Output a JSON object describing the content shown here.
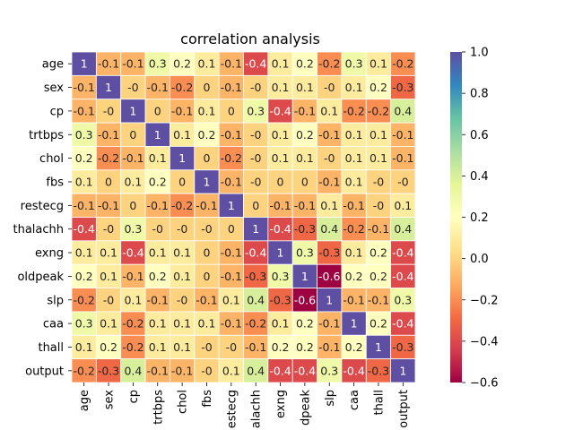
{
  "chart_data": {
    "type": "heatmap",
    "title": "correlation analysis",
    "xlabel": "",
    "ylabel": "",
    "labels": [
      "age",
      "sex",
      "cp",
      "trtbps",
      "chol",
      "fbs",
      "restecg",
      "thalachh",
      "exng",
      "oldpeak",
      "slp",
      "caa",
      "thall",
      "output"
    ],
    "x_tick_labels_visible": [
      "age",
      "sex",
      "cp",
      "trtbps",
      "chol",
      "fbs",
      "estecg",
      "alachh",
      "exng",
      "dpeak",
      "slp",
      "caa",
      "thall",
      "output"
    ],
    "matrix": [
      [
        1,
        -0.1,
        -0.1,
        0.3,
        0.2,
        0.1,
        -0.1,
        -0.4,
        0.1,
        0.2,
        -0.2,
        0.3,
        0.1,
        -0.2
      ],
      [
        -0.1,
        1,
        0,
        -0.1,
        -0.2,
        0,
        -0.1,
        0,
        0.1,
        0.1,
        0,
        0.1,
        0.2,
        -0.3
      ],
      [
        -0.1,
        0,
        1,
        0,
        -0.1,
        0.1,
        0,
        0.3,
        -0.4,
        -0.1,
        0.1,
        -0.2,
        -0.2,
        0.4
      ],
      [
        0.3,
        -0.1,
        0,
        1,
        0.1,
        0.2,
        -0.1,
        0,
        0.1,
        0.2,
        -0.1,
        0.1,
        0.1,
        -0.1
      ],
      [
        0.2,
        -0.2,
        -0.1,
        0.1,
        1,
        0,
        -0.2,
        0,
        0.1,
        0.1,
        0,
        0.1,
        0.1,
        -0.1
      ],
      [
        0.1,
        0,
        0.1,
        0.2,
        0,
        1,
        -0.1,
        0,
        0,
        0,
        -0.1,
        0.1,
        0,
        0
      ],
      [
        -0.1,
        -0.1,
        0,
        -0.1,
        -0.2,
        -0.1,
        1,
        0,
        -0.1,
        -0.1,
        0.1,
        -0.1,
        0,
        0.1
      ],
      [
        -0.4,
        0,
        0.3,
        0,
        0,
        0,
        0,
        1,
        -0.4,
        -0.3,
        0.4,
        -0.2,
        -0.1,
        0.4
      ],
      [
        0.1,
        0.1,
        -0.4,
        0.1,
        0.1,
        0,
        -0.1,
        -0.4,
        1,
        0.3,
        -0.3,
        0.1,
        0.2,
        -0.4
      ],
      [
        0.2,
        0.1,
        -0.1,
        0.2,
        0.1,
        0,
        -0.1,
        -0.3,
        0.3,
        1,
        -0.6,
        0.2,
        0.2,
        -0.4
      ],
      [
        -0.2,
        0,
        0.1,
        -0.1,
        0,
        -0.1,
        0.1,
        0.4,
        -0.3,
        -0.6,
        1,
        -0.1,
        -0.1,
        0.3
      ],
      [
        0.3,
        0.1,
        -0.2,
        0.1,
        0.1,
        0.1,
        -0.1,
        -0.2,
        0.1,
        0.2,
        -0.1,
        1,
        0.2,
        -0.4
      ],
      [
        0.1,
        0.2,
        -0.2,
        0.1,
        0.1,
        0,
        0,
        -0.1,
        0.2,
        0.2,
        -0.1,
        0.2,
        1,
        -0.3
      ],
      [
        -0.2,
        -0.3,
        0.4,
        -0.1,
        -0.1,
        0,
        0.1,
        0.4,
        -0.4,
        -0.4,
        0.3,
        -0.4,
        -0.3,
        1
      ]
    ],
    "colorbar": {
      "colormap": "Spectral",
      "vmin": -0.6,
      "vmax": 1.0,
      "ticks": [
        -0.6,
        -0.4,
        -0.2,
        0.0,
        0.2,
        0.4,
        0.6,
        0.8,
        1.0
      ],
      "tick_labels": [
        "−0.6",
        "−0.4",
        "−0.2",
        "0.0",
        "0.2",
        "0.4",
        "0.6",
        "0.8",
        "1.0"
      ]
    },
    "annotations": true,
    "grid_lines_color": "#ffffff",
    "spectral_stops": [
      "#9e0142",
      "#d53e4f",
      "#f46d43",
      "#fdae61",
      "#fee08b",
      "#ffffbf",
      "#e6f598",
      "#abdda4",
      "#66c2a5",
      "#3288bd",
      "#5e4fa2"
    ]
  }
}
